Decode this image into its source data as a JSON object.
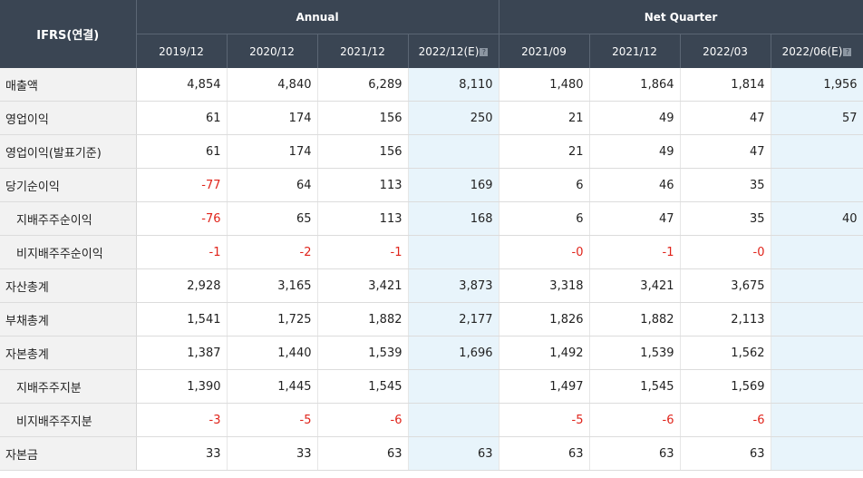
{
  "header": {
    "corner": "IFRS(연결)",
    "annual_label": "Annual",
    "quarter_label": "Net Quarter",
    "periods": [
      "2019/12",
      "2020/12",
      "2021/12",
      "2022/12(E)",
      "2021/09",
      "2021/12",
      "2022/03",
      "2022/06(E)"
    ],
    "estimate_marker": "?"
  },
  "rows": [
    {
      "label": "매출액",
      "sub": false,
      "values": [
        "4,854",
        "4,840",
        "6,289",
        "8,110",
        "1,480",
        "1,864",
        "1,814",
        "1,956"
      ]
    },
    {
      "label": "영업이익",
      "sub": false,
      "values": [
        "61",
        "174",
        "156",
        "250",
        "21",
        "49",
        "47",
        "57"
      ]
    },
    {
      "label": "영업이익(발표기준)",
      "sub": false,
      "values": [
        "61",
        "174",
        "156",
        "",
        "21",
        "49",
        "47",
        ""
      ]
    },
    {
      "label": "당기순이익",
      "sub": false,
      "values": [
        "-77",
        "64",
        "113",
        "169",
        "6",
        "46",
        "35",
        ""
      ]
    },
    {
      "label": "지배주주순이익",
      "sub": true,
      "values": [
        "-76",
        "65",
        "113",
        "168",
        "6",
        "47",
        "35",
        "40"
      ]
    },
    {
      "label": "비지배주주순이익",
      "sub": true,
      "values": [
        "-1",
        "-2",
        "-1",
        "",
        "-0",
        "-1",
        "-0",
        ""
      ]
    },
    {
      "label": "자산총계",
      "sub": false,
      "values": [
        "2,928",
        "3,165",
        "3,421",
        "3,873",
        "3,318",
        "3,421",
        "3,675",
        ""
      ]
    },
    {
      "label": "부채총계",
      "sub": false,
      "values": [
        "1,541",
        "1,725",
        "1,882",
        "2,177",
        "1,826",
        "1,882",
        "2,113",
        ""
      ]
    },
    {
      "label": "자본총계",
      "sub": false,
      "values": [
        "1,387",
        "1,440",
        "1,539",
        "1,696",
        "1,492",
        "1,539",
        "1,562",
        ""
      ]
    },
    {
      "label": "지배주주지분",
      "sub": true,
      "values": [
        "1,390",
        "1,445",
        "1,545",
        "",
        "1,497",
        "1,545",
        "1,569",
        ""
      ]
    },
    {
      "label": "비지배주주지분",
      "sub": true,
      "values": [
        "-3",
        "-5",
        "-6",
        "",
        "-5",
        "-6",
        "-6",
        ""
      ]
    },
    {
      "label": "자본금",
      "sub": false,
      "values": [
        "33",
        "33",
        "63",
        "63",
        "63",
        "63",
        "63",
        ""
      ]
    }
  ],
  "colors": {
    "header_bg": "#3a4553",
    "estimate_bg": "#e8f4fb",
    "negative": "#e0241b",
    "label_bg": "#f2f2f2"
  }
}
